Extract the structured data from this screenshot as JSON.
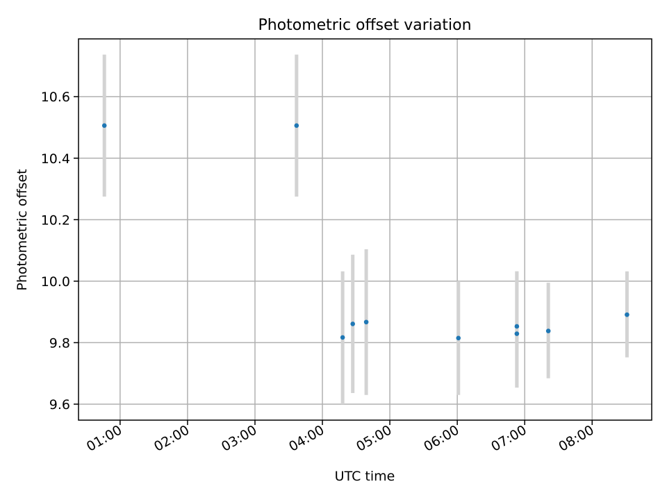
{
  "chart_data": {
    "type": "scatter",
    "title": "Photometric offset variation",
    "xlabel": "UTC time",
    "ylabel": "Photometric offset",
    "x_unit": "UTC time (HH:MM)",
    "xlim": [
      "00:23",
      "08:53"
    ],
    "ylim": [
      9.548,
      10.788
    ],
    "xticks": [
      "01:00",
      "02:00",
      "03:00",
      "04:00",
      "05:00",
      "06:00",
      "07:00",
      "08:00"
    ],
    "yticks": [
      9.6,
      9.8,
      10.0,
      10.2,
      10.4,
      10.6
    ],
    "yticklabels": [
      "9.6",
      "9.8",
      "10.0",
      "10.2",
      "10.4",
      "10.6"
    ],
    "grid": true,
    "series": [
      {
        "marker_color": "#1f77b4",
        "errorbar_color": "#d3d3d3",
        "points": [
          {
            "x": "00:46",
            "y": 10.506,
            "ymin": 10.275,
            "ymax": 10.737
          },
          {
            "x": "03:37",
            "y": 10.506,
            "ymin": 10.275,
            "ymax": 10.737
          },
          {
            "x": "04:18",
            "y": 9.817,
            "ymin": 9.6,
            "ymax": 10.032
          },
          {
            "x": "04:27",
            "y": 9.861,
            "ymin": 9.636,
            "ymax": 10.086
          },
          {
            "x": "04:39",
            "y": 9.867,
            "ymin": 9.63,
            "ymax": 10.104
          },
          {
            "x": "06:01",
            "y": 9.815,
            "ymin": 9.63,
            "ymax": 10.0
          },
          {
            "x": "06:53",
            "y": 9.853,
            "ymin": 9.654,
            "ymax": 10.032
          },
          {
            "x": "06:53",
            "y": 9.829,
            "ymin": 9.654,
            "ymax": 10.032
          },
          {
            "x": "07:21",
            "y": 9.838,
            "ymin": 9.684,
            "ymax": 9.995
          },
          {
            "x": "08:31",
            "y": 9.891,
            "ymin": 9.752,
            "ymax": 10.032
          }
        ]
      }
    ]
  }
}
